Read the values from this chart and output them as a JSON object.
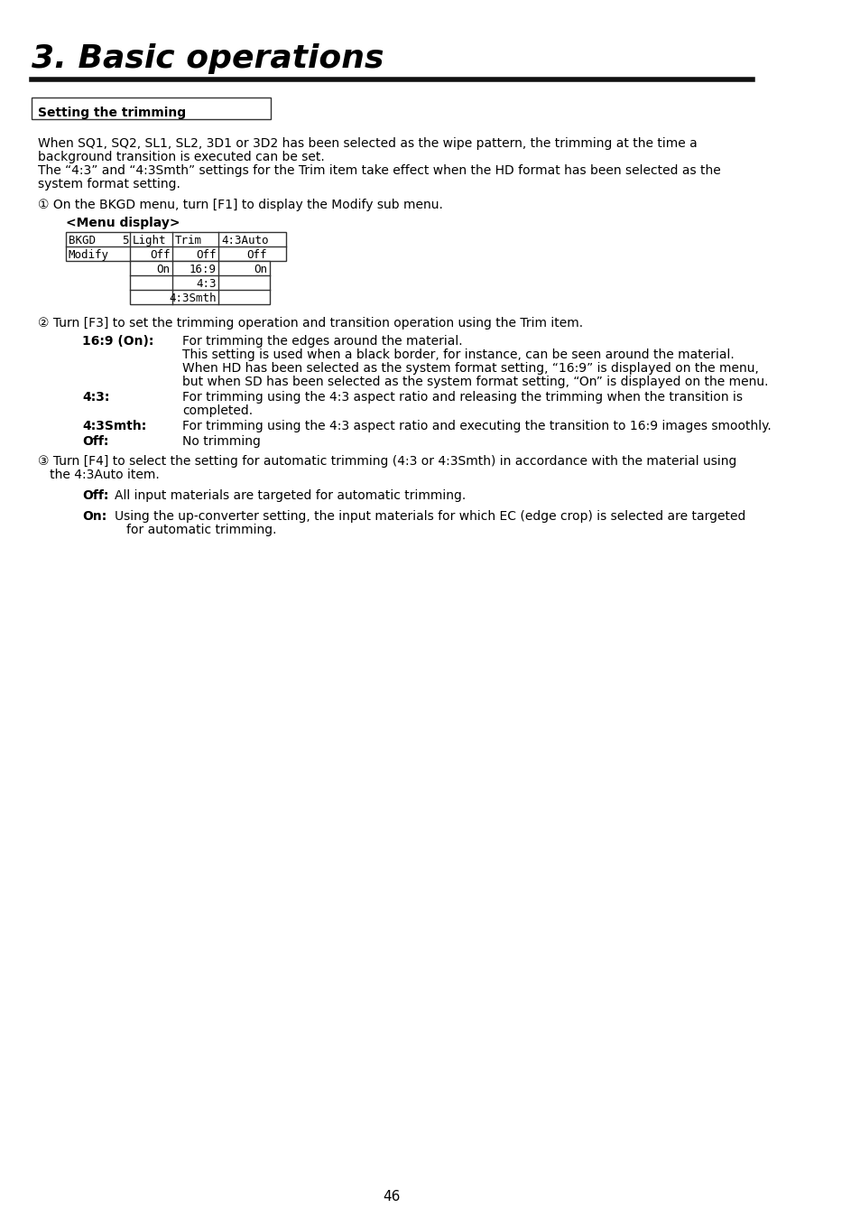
{
  "title": "3. Basic operations",
  "section_header": "Setting the trimming",
  "bg_color": "#ffffff",
  "text_color": "#000000",
  "page_number": "46",
  "para1_lines": [
    "When SQ1, SQ2, SL1, SL2, 3D1 or 3D2 has been selected as the wipe pattern, the trimming at the time a",
    "background transition is executed can be set.",
    "The “4:3” and “4:3Smth” settings for the Trim item take effect when the HD format has been selected as the",
    "system format setting."
  ],
  "step1_intro": "① On the BKGD menu, turn [F1] to display the Modify sub menu.",
  "menu_display_label": "<Menu display>",
  "table_row1": [
    "BKGD    5",
    "Light",
    "Trim",
    "4:3Auto"
  ],
  "table_row2": [
    "Modify",
    "Off",
    "Off",
    "Off"
  ],
  "drop_rows": [
    [
      "On",
      "16:9",
      "On"
    ],
    [
      "",
      "4:3",
      ""
    ],
    [
      "",
      "4:3Smth",
      ""
    ]
  ],
  "step2_intro": "② Turn [F3] to set the trimming operation and transition operation using the Trim item.",
  "step2_items": [
    {
      "label": "16:9 (On):",
      "lines": [
        "For trimming the edges around the material.",
        "This setting is used when a black border, for instance, can be seen around the material.",
        "When HD has been selected as the system format setting, “16:9” is displayed on the menu,",
        "but when SD has been selected as the system format setting, “On” is displayed on the menu."
      ]
    },
    {
      "label": "4:3:",
      "lines": [
        "For trimming using the 4:3 aspect ratio and releasing the trimming when the transition is",
        "completed."
      ]
    },
    {
      "label": "4:3Smth:",
      "lines": [
        "For trimming using the 4:3 aspect ratio and executing the transition to 16:9 images smoothly."
      ]
    },
    {
      "label": "Off:",
      "lines": [
        "No trimming"
      ]
    }
  ],
  "step3_lines": [
    "③ Turn [F4] to select the setting for automatic trimming (4:3 or 4:3Smth) in accordance with the material using",
    "   the 4:3Auto item."
  ],
  "step3_items": [
    {
      "label": "Off:",
      "lines": [
        "All input materials are targeted for automatic trimming."
      ]
    },
    {
      "label": "On:",
      "lines": [
        "Using the up-converter setting, the input materials for which EC (edge crop) is selected are targeted",
        "for automatic trimming."
      ]
    }
  ]
}
